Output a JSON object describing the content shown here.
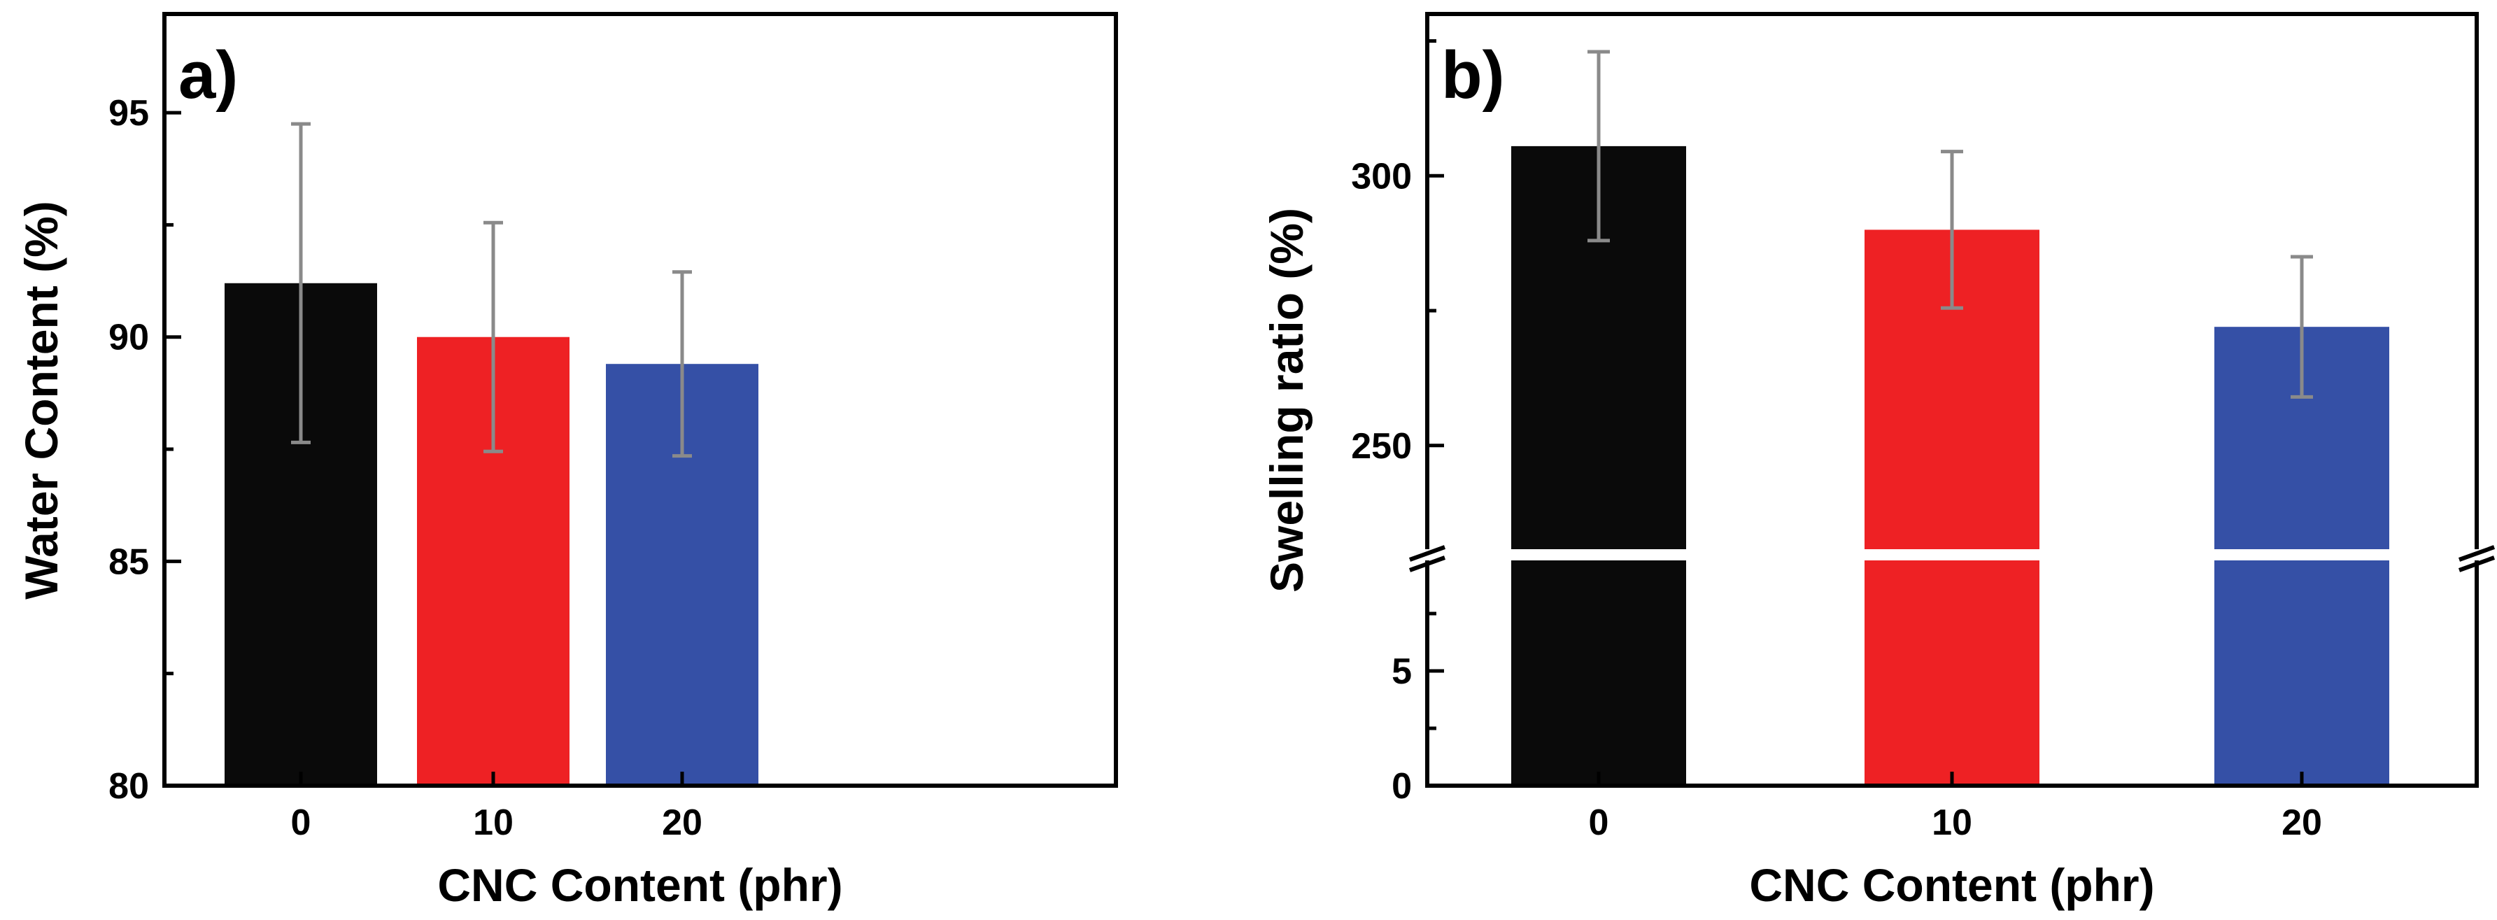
{
  "chart_data": [
    {
      "type": "bar",
      "panel_label": "a)",
      "categories": [
        "0",
        "10",
        "20"
      ],
      "values": [
        91.2,
        90.0,
        89.4
      ],
      "errors": [
        3.55,
        2.55,
        2.05
      ],
      "colors": [
        "#0a0a0a",
        "#ee2124",
        "#3550a6"
      ],
      "xlabel": "CNC Content (phr)",
      "ylabel": "Water Content (%)",
      "ylim": [
        80,
        97.2
      ],
      "yticks": [
        "80",
        "85",
        "90",
        "95"
      ],
      "grid": false
    },
    {
      "type": "bar",
      "panel_label": "b)",
      "categories": [
        "0",
        "10",
        "20"
      ],
      "values": [
        305.5,
        290.0,
        272.0
      ],
      "errors": [
        17.5,
        14.5,
        13.0
      ],
      "colors": [
        "#0a0a0a",
        "#ee2124",
        "#3550a6"
      ],
      "xlabel": "CNC Content (phr)",
      "ylabel": "Swelling ratio (%)",
      "broken_axis": true,
      "ylim_lower": [
        0,
        10
      ],
      "ylim_upper": [
        230,
        330
      ],
      "yticks_lower": [
        "0",
        "5"
      ],
      "yticks_upper": [
        "250",
        "300"
      ],
      "grid": false
    }
  ]
}
